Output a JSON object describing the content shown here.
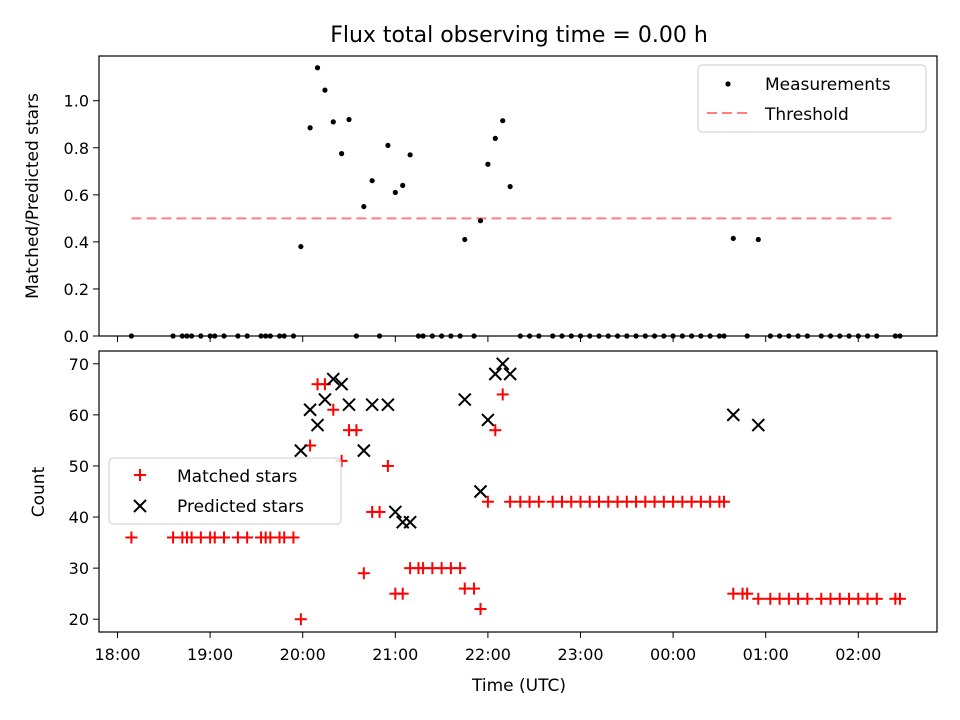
{
  "title": "Flux total observing time = 0.00 h",
  "chart_data": [
    {
      "type": "scatter",
      "name": "ratio-panel",
      "ylabel": "Matched/Predicted stars",
      "ylim": [
        0,
        1.19
      ],
      "yticks": [
        0.0,
        0.2,
        0.4,
        0.6,
        0.8,
        1.0
      ],
      "ytick_labels": [
        "0.0",
        "0.2",
        "0.4",
        "0.6",
        "0.8",
        "1.0"
      ],
      "xlim": [
        17.8,
        26.85
      ],
      "legend": {
        "placement": "upper right",
        "measurements": "Measurements",
        "threshold": "Threshold"
      },
      "threshold": {
        "value": 0.5,
        "x_start": 18.15,
        "x_end": 26.4,
        "color": "#ff7f7f"
      },
      "x": [
        18.15,
        18.6,
        18.7,
        18.75,
        18.8,
        18.9,
        19.0,
        19.05,
        19.15,
        19.3,
        19.4,
        19.55,
        19.6,
        19.65,
        19.75,
        19.8,
        19.9,
        19.98,
        20.08,
        20.16,
        20.24,
        20.33,
        20.42,
        20.5,
        20.58,
        20.66,
        20.75,
        20.83,
        20.92,
        21.0,
        21.08,
        21.16,
        21.25,
        21.3,
        21.4,
        21.5,
        21.6,
        21.7,
        21.75,
        21.85,
        21.92,
        22.0,
        22.08,
        22.16,
        22.24,
        22.35,
        22.45,
        22.55,
        22.7,
        22.8,
        22.9,
        23.0,
        23.1,
        23.2,
        23.3,
        23.4,
        23.5,
        23.6,
        23.7,
        23.8,
        23.9,
        24.0,
        24.1,
        24.2,
        24.3,
        24.4,
        24.5,
        24.55,
        24.65,
        24.8,
        24.92,
        25.05,
        25.15,
        25.25,
        25.35,
        25.45,
        25.6,
        25.7,
        25.8,
        25.9,
        26.0,
        26.1,
        26.2,
        26.4,
        26.45
      ],
      "y": [
        0,
        0,
        0,
        0,
        0,
        0,
        0,
        0,
        0,
        0,
        0,
        0,
        0,
        0,
        0,
        0,
        0,
        0.38,
        0.885,
        1.14,
        1.045,
        0.91,
        0.775,
        0.92,
        0,
        0.55,
        0.66,
        0,
        0.81,
        0.61,
        0.64,
        0.77,
        0,
        0,
        0,
        0,
        0,
        0,
        0.41,
        0,
        0.49,
        0.73,
        0.84,
        0.915,
        0.635,
        0,
        0,
        0,
        0,
        0,
        0,
        0,
        0,
        0,
        0,
        0,
        0,
        0,
        0,
        0,
        0,
        0,
        0,
        0,
        0,
        0,
        0,
        0,
        0.415,
        0,
        0.41,
        0,
        0,
        0,
        0,
        0,
        0,
        0,
        0,
        0,
        0,
        0,
        0,
        0,
        0
      ],
      "marker_color": "#000000"
    },
    {
      "type": "scatter",
      "name": "count-panel",
      "ylabel": "Count",
      "xlabel": "Time (UTC)",
      "ylim": [
        17.5,
        72.5
      ],
      "yticks": [
        20,
        30,
        40,
        50,
        60,
        70
      ],
      "ytick_labels": [
        "20",
        "30",
        "40",
        "50",
        "60",
        "70"
      ],
      "xlim": [
        17.8,
        26.85
      ],
      "xticks": [
        18,
        19,
        20,
        21,
        22,
        23,
        24,
        25,
        26
      ],
      "xtick_labels": [
        "18:00",
        "19:00",
        "20:00",
        "21:00",
        "22:00",
        "23:00",
        "00:00",
        "01:00",
        "02:00"
      ],
      "legend": {
        "placement": "center left",
        "matched": "Matched stars",
        "predicted": "Predicted stars"
      },
      "series": [
        {
          "name": "Matched stars",
          "marker": "plus",
          "color": "#ff0000",
          "x": [
            18.15,
            18.6,
            18.7,
            18.75,
            18.8,
            18.9,
            19.0,
            19.05,
            19.15,
            19.3,
            19.4,
            19.55,
            19.6,
            19.65,
            19.75,
            19.8,
            19.9,
            19.98,
            20.08,
            20.16,
            20.24,
            20.33,
            20.42,
            20.5,
            20.58,
            20.66,
            20.75,
            20.83,
            20.92,
            21.0,
            21.08,
            21.16,
            21.25,
            21.3,
            21.4,
            21.5,
            21.6,
            21.7,
            21.75,
            21.85,
            21.92,
            22.0,
            22.08,
            22.16,
            22.24,
            22.35,
            22.45,
            22.55,
            22.7,
            22.8,
            22.9,
            23.0,
            23.1,
            23.2,
            23.3,
            23.4,
            23.5,
            23.6,
            23.7,
            23.8,
            23.9,
            24.0,
            24.1,
            24.2,
            24.3,
            24.4,
            24.5,
            24.55,
            24.65,
            24.75,
            24.8,
            24.92,
            25.05,
            25.15,
            25.25,
            25.35,
            25.45,
            25.6,
            25.7,
            25.8,
            25.9,
            26.0,
            26.1,
            26.2,
            26.4,
            26.45
          ],
          "values": [
            36,
            36,
            36,
            36,
            36,
            36,
            36,
            36,
            36,
            36,
            36,
            36,
            36,
            36,
            36,
            36,
            36,
            20,
            54,
            66,
            66,
            61,
            51,
            57,
            57,
            29,
            41,
            41,
            50,
            25,
            25,
            30,
            30,
            30,
            30,
            30,
            30,
            30,
            26,
            26,
            22,
            43,
            57,
            64,
            43,
            43,
            43,
            43,
            43,
            43,
            43,
            43,
            43,
            43,
            43,
            43,
            43,
            43,
            43,
            43,
            43,
            43,
            43,
            43,
            43,
            43,
            43,
            43,
            25,
            25,
            25,
            24,
            24,
            24,
            24,
            24,
            24,
            24,
            24,
            24,
            24,
            24,
            24,
            24,
            24,
            24
          ]
        },
        {
          "name": "Predicted stars",
          "marker": "x",
          "color": "#000000",
          "x": [
            19.98,
            20.08,
            20.16,
            20.24,
            20.33,
            20.42,
            20.5,
            20.66,
            20.75,
            20.92,
            21.0,
            21.08,
            21.16,
            21.75,
            21.92,
            22.0,
            22.08,
            22.16,
            22.24,
            24.65,
            24.92
          ],
          "values": [
            53,
            61,
            58,
            63,
            67,
            66,
            62,
            53,
            62,
            62,
            41,
            39,
            39,
            63,
            45,
            59,
            68,
            70,
            68,
            60,
            58
          ]
        }
      ]
    }
  ]
}
